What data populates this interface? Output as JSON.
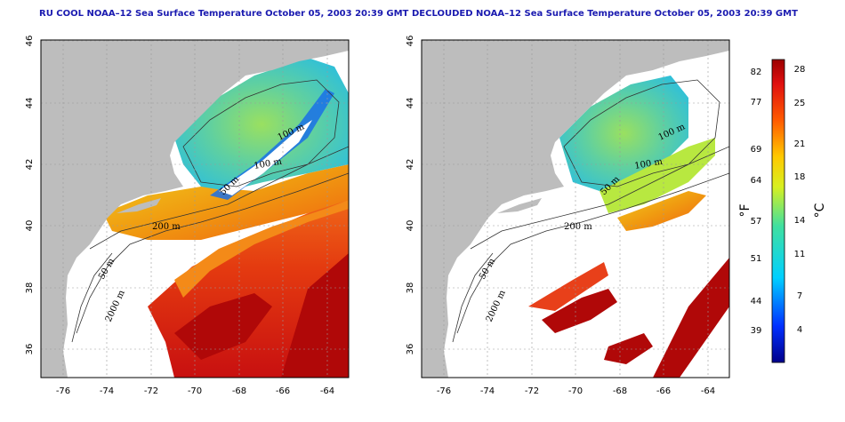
{
  "panels": [
    {
      "title": "RU COOL NOAA–12 Sea Surface Temperature October 05, 2003 20:39 GMT"
    },
    {
      "title": "DECLOUDED NOAA–12 Sea Surface Temperature October 05, 2003 20:39 GMT"
    }
  ],
  "axes": {
    "lon_ticks": [
      "-76",
      "-74",
      "-72",
      "-70",
      "-68",
      "-66",
      "-64"
    ],
    "lat_ticks": [
      "36",
      "38",
      "40",
      "42",
      "44",
      "46"
    ]
  },
  "depth_labels": [
    "100 m",
    "100 m",
    "50 m",
    "200 m",
    "50 m",
    "2000 m"
  ],
  "colorbar": {
    "fahrenheit_ticks": [
      "82",
      "77",
      "69",
      "64",
      "57",
      "51",
      "44",
      "39"
    ],
    "celsius_ticks": [
      "28",
      "25",
      "21",
      "18",
      "14",
      "11",
      "7",
      "4"
    ],
    "f_unit": "°F",
    "c_unit": "°C"
  },
  "colors": {
    "land": "#bdbdbd",
    "title": "#1a1ab0",
    "warm": "#c41010",
    "cool": "#30c8d8"
  }
}
